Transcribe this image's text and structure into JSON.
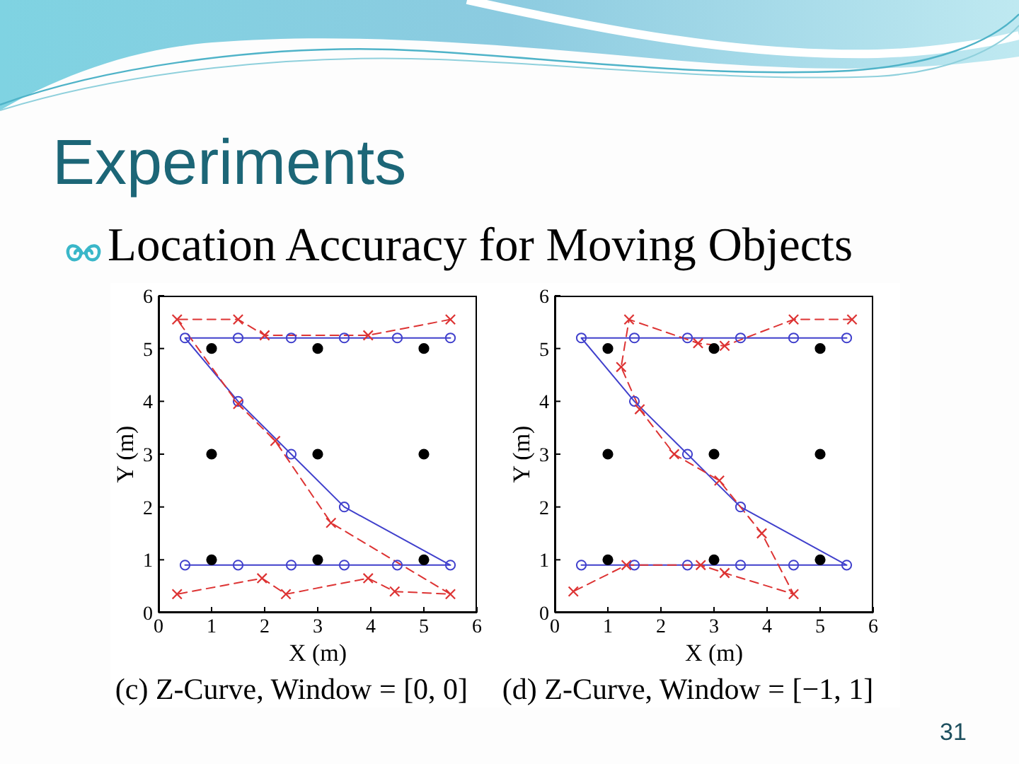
{
  "chart_data": [
    {
      "type": "line",
      "title": "(c) Z-Curve, Window = [0, 0]",
      "xlabel": "X (m)",
      "ylabel": "Y (m)",
      "xlim": [
        0,
        6
      ],
      "ylim": [
        0,
        6
      ],
      "xticks": [
        0,
        1,
        2,
        3,
        4,
        5,
        6
      ],
      "yticks": [
        0,
        1,
        2,
        3,
        4,
        5,
        6
      ],
      "annotations": [
        "Experiments",
        "Location Accuracy for Moving Objects"
      ],
      "series": [
        {
          "type": "scatter",
          "color": "#000000",
          "marker": "circle",
          "x": [
            1,
            3,
            5,
            1,
            3,
            5,
            1,
            3,
            5
          ],
          "values": [
            5,
            5,
            5,
            3,
            3,
            3,
            1,
            1,
            1
          ]
        },
        {
          "type": "line",
          "color": "#4040cc",
          "marker": "circle",
          "line_style": "solid",
          "x": [
            5.5,
            4.5,
            3.5,
            2.5,
            1.5,
            0.5,
            1.5,
            2.5,
            3.5,
            5.5,
            4.5,
            3.5,
            2.5,
            1.5,
            0.5
          ],
          "values": [
            5.2,
            5.2,
            5.2,
            5.2,
            5.2,
            5.2,
            4,
            3,
            2,
            0.9,
            0.9,
            0.9,
            0.9,
            0.9,
            0.9
          ]
        },
        {
          "type": "line",
          "color": "#dd3333",
          "marker": "cross",
          "line_style": "dashed",
          "x": [
            5.5,
            3.95,
            2.0,
            1.5,
            0.35,
            1.5,
            2.2,
            3.25,
            5.5,
            4.45,
            3.95,
            2.4,
            1.95,
            0.35
          ],
          "values": [
            5.55,
            5.25,
            5.25,
            5.55,
            5.55,
            3.95,
            3.25,
            1.7,
            0.35,
            0.4,
            0.65,
            0.35,
            0.65,
            0.35
          ]
        }
      ]
    },
    {
      "type": "line",
      "title": "(d) Z-Curve, Window = [−1, 1]",
      "xlabel": "X (m)",
      "ylabel": "Y (m)",
      "xlim": [
        0,
        6
      ],
      "ylim": [
        0,
        6
      ],
      "xticks": [
        0,
        1,
        2,
        3,
        4,
        5,
        6
      ],
      "yticks": [
        0,
        1,
        2,
        3,
        4,
        5,
        6
      ],
      "annotations": [
        "31"
      ],
      "series": [
        {
          "type": "scatter",
          "color": "#000000",
          "marker": "circle",
          "x": [
            1,
            3,
            5,
            1,
            3,
            5,
            1,
            3,
            5
          ],
          "values": [
            5,
            5,
            5,
            3,
            3,
            3,
            1,
            1,
            1
          ]
        },
        {
          "type": "line",
          "color": "#4040cc",
          "marker": "circle",
          "line_style": "solid",
          "x": [
            5.5,
            4.5,
            3.5,
            2.5,
            1.5,
            0.5,
            1.5,
            2.5,
            3.5,
            5.5,
            4.5,
            3.5,
            2.5,
            1.5,
            0.5
          ],
          "values": [
            5.2,
            5.2,
            5.2,
            5.2,
            5.2,
            5.2,
            4,
            3,
            2,
            0.9,
            0.9,
            0.9,
            0.9,
            0.9,
            0.9
          ]
        },
        {
          "type": "line",
          "color": "#dd3333",
          "marker": "cross",
          "line_style": "dashed",
          "x": [
            5.6,
            4.5,
            3.2,
            2.7,
            1.4,
            1.25,
            1.6,
            2.25,
            3.1,
            3.9,
            4.5,
            3.2,
            2.75,
            1.35,
            0.35
          ],
          "values": [
            5.55,
            5.55,
            5.05,
            5.1,
            5.55,
            4.65,
            3.85,
            3.0,
            2.5,
            1.5,
            0.35,
            0.75,
            0.9,
            0.9,
            0.4
          ]
        }
      ]
    }
  ]
}
